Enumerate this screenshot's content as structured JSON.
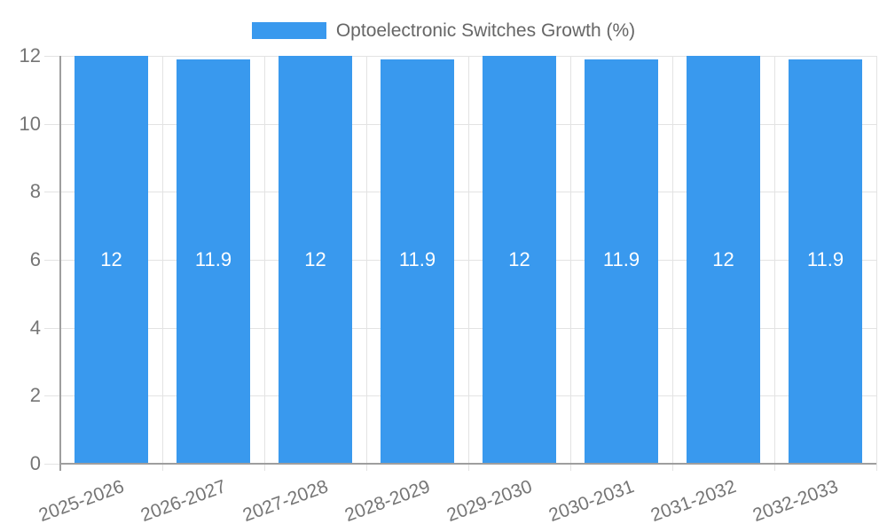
{
  "chart_data": {
    "type": "bar",
    "title": "Optoelectronic Switches Growth (%)",
    "legend": {
      "label": "Optoelectronic Switches Growth (%)",
      "position": "top"
    },
    "categories": [
      "2025-2026",
      "2026-2027",
      "2027-2028",
      "2028-2029",
      "2029-2030",
      "2030-2031",
      "2031-2032",
      "2032-2033"
    ],
    "series": [
      {
        "name": "Optoelectronic Switches Growth (%)",
        "values": [
          12,
          11.9,
          12,
          11.9,
          12,
          11.9,
          12,
          11.9
        ],
        "value_labels": [
          "12",
          "11.9",
          "12",
          "11.9",
          "12",
          "11.9",
          "12",
          "11.9"
        ]
      }
    ],
    "xlabel": "",
    "ylabel": "",
    "ylim": [
      0,
      12
    ],
    "yticks": [
      0,
      2,
      4,
      6,
      8,
      10,
      12
    ],
    "grid": true
  },
  "colors": {
    "bar": "#3999ee",
    "grid": "#e3e3e3",
    "axis": "#9e9e9e",
    "tick_text": "#757575",
    "legend_text": "#666666",
    "value_text": "#ffffff",
    "background": "#ffffff"
  }
}
